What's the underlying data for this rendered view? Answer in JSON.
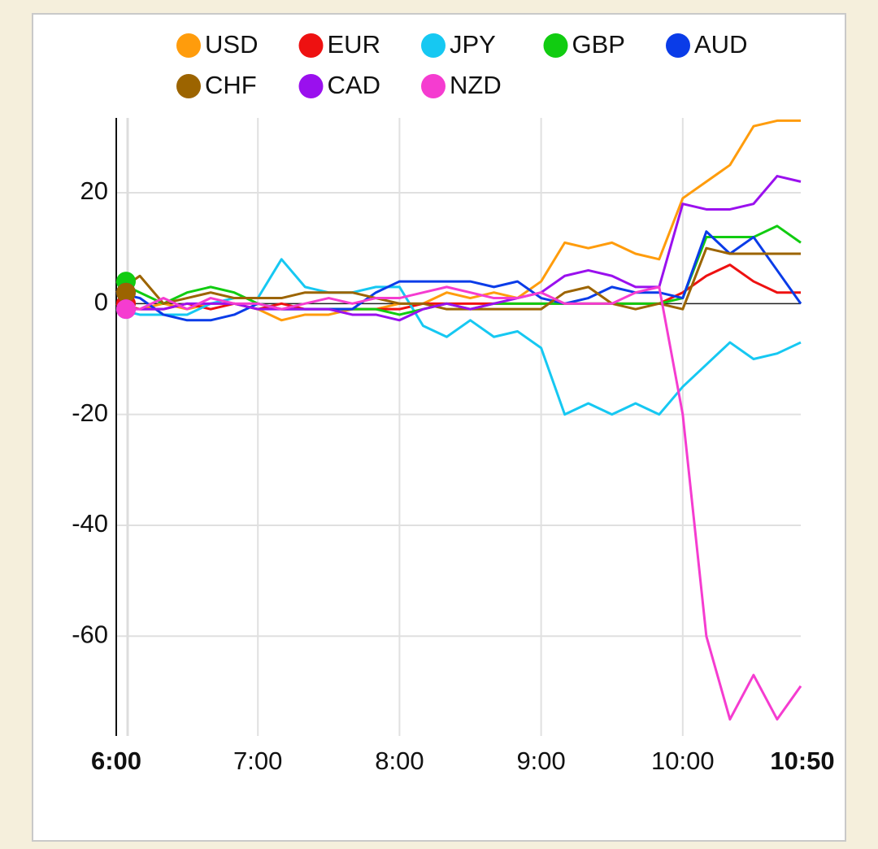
{
  "chart_data": {
    "type": "line",
    "x": [
      "6:00",
      "6:10",
      "6:20",
      "6:30",
      "6:40",
      "6:50",
      "7:00",
      "7:10",
      "7:20",
      "7:30",
      "7:40",
      "7:50",
      "8:00",
      "8:10",
      "8:20",
      "8:30",
      "8:40",
      "8:50",
      "9:00",
      "9:10",
      "9:20",
      "9:30",
      "9:40",
      "9:50",
      "10:00",
      "10:10",
      "10:20",
      "10:30",
      "10:40",
      "10:50"
    ],
    "xticks": [
      "6:00",
      "7:00",
      "8:00",
      "9:00",
      "10:00",
      "10:50"
    ],
    "ylim": [
      -78,
      33.5
    ],
    "yticks": [
      -60,
      -40,
      -20,
      0,
      20
    ],
    "grid": true,
    "series": [
      {
        "name": "USD",
        "color": "#ff9c0c",
        "values": [
          0,
          -1,
          0,
          -1,
          0,
          0,
          -1,
          -3,
          -2,
          -2,
          -1,
          -1,
          0,
          0,
          2,
          1,
          2,
          1,
          4,
          11,
          10,
          11,
          9,
          8,
          19,
          22,
          25,
          32,
          33,
          33
        ]
      },
      {
        "name": "EUR",
        "color": "#ee1111",
        "values": [
          0,
          -1,
          -1,
          0,
          -1,
          0,
          -1,
          0,
          -1,
          -1,
          -1,
          -1,
          -1,
          0,
          0,
          0,
          0,
          0,
          0,
          0,
          0,
          0,
          0,
          0,
          2,
          5,
          7,
          4,
          2,
          2
        ]
      },
      {
        "name": "JPY",
        "color": "#16c8f2",
        "values": [
          -1,
          -2,
          -2,
          -2,
          0,
          1,
          1,
          8,
          3,
          2,
          2,
          3,
          3,
          -4,
          -6,
          -3,
          -6,
          -5,
          -8,
          -20,
          -18,
          -20,
          -18,
          -20,
          -15,
          -11,
          -7,
          -10,
          -9,
          -7
        ]
      },
      {
        "name": "GBP",
        "color": "#11cc11",
        "values": [
          4,
          2,
          0,
          2,
          3,
          2,
          0,
          -1,
          -1,
          -1,
          -1,
          -1,
          -2,
          -1,
          0,
          -1,
          0,
          0,
          0,
          0,
          0,
          0,
          0,
          0,
          1,
          12,
          12,
          12,
          14,
          11
        ]
      },
      {
        "name": "AUD",
        "color": "#0a3ce8",
        "values": [
          2,
          1,
          -2,
          -3,
          -3,
          -2,
          0,
          -1,
          -1,
          -1,
          -1,
          2,
          4,
          4,
          4,
          4,
          3,
          4,
          1,
          0,
          1,
          3,
          2,
          2,
          1,
          13,
          9,
          12,
          6,
          0
        ]
      },
      {
        "name": "CHF",
        "color": "#9c6400",
        "values": [
          2,
          5,
          0,
          1,
          2,
          1,
          1,
          1,
          2,
          2,
          2,
          1,
          0,
          0,
          -1,
          -1,
          -1,
          -1,
          -1,
          2,
          3,
          0,
          -1,
          0,
          -1,
          10,
          9,
          9,
          9,
          9
        ]
      },
      {
        "name": "CAD",
        "color": "#9a10ee",
        "values": [
          -1,
          -1,
          -1,
          0,
          0,
          0,
          -1,
          -1,
          -1,
          -1,
          -2,
          -2,
          -3,
          -1,
          0,
          -1,
          0,
          1,
          2,
          5,
          6,
          5,
          3,
          3,
          18,
          17,
          17,
          18,
          23,
          22
        ]
      },
      {
        "name": "NZD",
        "color": "#f53cd0",
        "values": [
          -1,
          -1,
          1,
          -1,
          1,
          0,
          0,
          -1,
          0,
          1,
          0,
          1,
          1,
          2,
          3,
          2,
          1,
          1,
          2,
          0,
          0,
          0,
          2,
          3,
          -20,
          -60,
          -75,
          -67,
          -75,
          -69
        ]
      }
    ]
  }
}
